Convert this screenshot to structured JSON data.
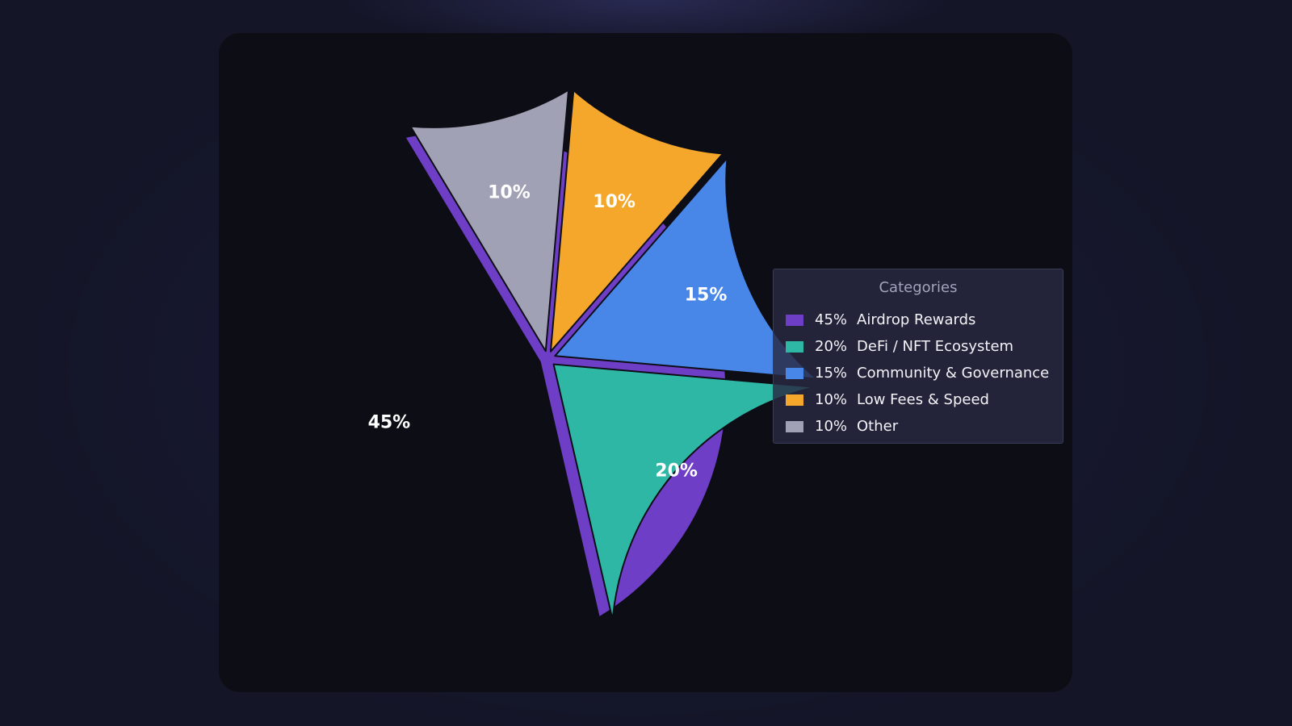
{
  "colors": {
    "page_background": "#141527",
    "card_background": "#0d0d15",
    "gap_color": "#0d0d15"
  },
  "chart_data": {
    "type": "pie",
    "title": "",
    "legend": {
      "title": "Categories",
      "placement": "right"
    },
    "slices": [
      {
        "label": "Airdrop Rewards",
        "value": 45,
        "value_label": "45%",
        "color": "#6e3ec6"
      },
      {
        "label": "DeFi / NFT Ecosystem",
        "value": 20,
        "value_label": "20%",
        "color": "#2fb7a5"
      },
      {
        "label": "Community & Governance",
        "value": 15,
        "value_label": "15%",
        "color": "#4886e8"
      },
      {
        "label": "Low Fees & Speed",
        "value": 10,
        "value_label": "10%",
        "color": "#f4a72a"
      },
      {
        "label": "Other",
        "value": 10,
        "value_label": "10%",
        "color": "#a1a1b5"
      }
    ]
  }
}
